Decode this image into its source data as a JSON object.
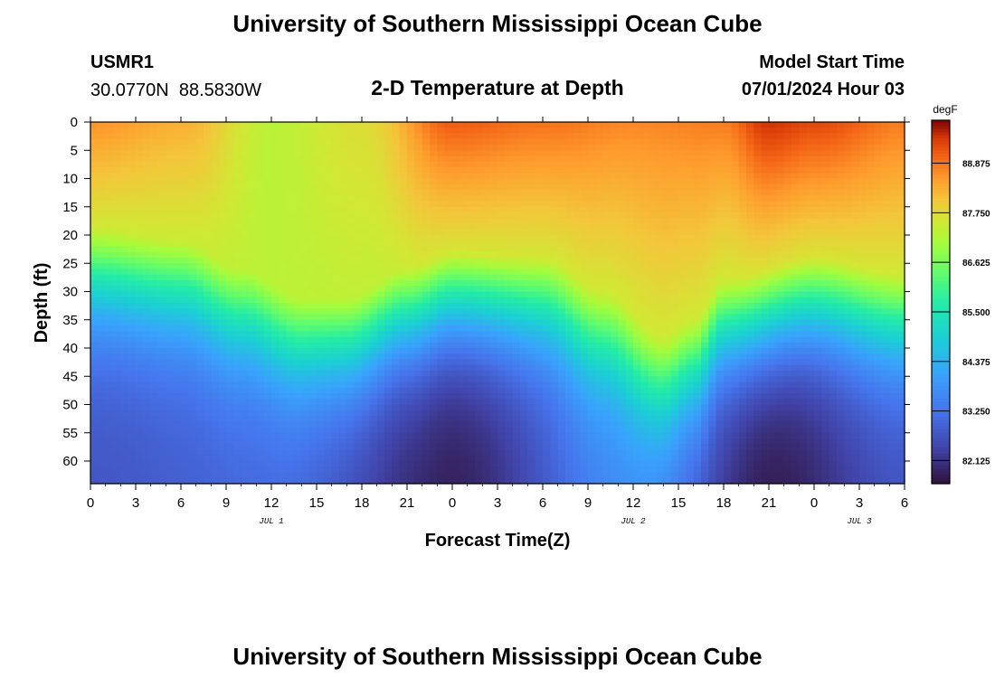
{
  "header": {
    "title": "University of Southern Mississippi Ocean Cube",
    "station_id": "USMR1",
    "coordinates": "30.0770N  88.5830W",
    "plot_title": "2-D Temperature at Depth",
    "model_start_label": "Model Start Time",
    "model_start_value": "07/01/2024 Hour 03"
  },
  "footer": {
    "title": "University of Southern Mississippi Ocean Cube"
  },
  "colorbar": {
    "unit": "degF",
    "ticks": [
      "88.875",
      "87.750",
      "86.625",
      "85.500",
      "84.375",
      "83.250",
      "82.125"
    ]
  },
  "chart_data": {
    "type": "heatmap",
    "title": "2-D Temperature at Depth",
    "xlabel": "Forecast Time(Z)",
    "ylabel": "Depth (ft)",
    "x_tick_labels": [
      "0",
      "3",
      "6",
      "9",
      "12",
      "15",
      "18",
      "21",
      "0",
      "3",
      "6",
      "9",
      "12",
      "15",
      "18",
      "21",
      "0",
      "3",
      "6"
    ],
    "x_range_hours": [
      0,
      54
    ],
    "date_labels": [
      {
        "label": "JUL 1",
        "hour": 12
      },
      {
        "label": "JUL 2",
        "hour": 36
      },
      {
        "label": "JUL 3",
        "hour": 51
      }
    ],
    "y_tick_labels": [
      "0",
      "5",
      "10",
      "15",
      "20",
      "25",
      "30",
      "35",
      "40",
      "45",
      "50",
      "55",
      "60"
    ],
    "ylim_ft": [
      0,
      64
    ],
    "colorbar_range_degF": [
      81.6,
      89.85
    ],
    "surface_temp_degF": [
      {
        "hour": 0,
        "value": 88.6
      },
      {
        "hour": 6,
        "value": 88.3
      },
      {
        "hour": 12,
        "value": 87.3
      },
      {
        "hour": 18,
        "value": 87.7
      },
      {
        "hour": 24,
        "value": 89.1
      },
      {
        "hour": 30,
        "value": 88.9
      },
      {
        "hour": 36,
        "value": 88.7
      },
      {
        "hour": 42,
        "value": 88.8
      },
      {
        "hour": 45,
        "value": 89.5
      },
      {
        "hour": 48,
        "value": 89.3
      },
      {
        "hour": 54,
        "value": 88.8
      }
    ],
    "thermocline_depth_ft": [
      {
        "hour": 0,
        "value": 25
      },
      {
        "hour": 6,
        "value": 27
      },
      {
        "hour": 10,
        "value": 32
      },
      {
        "hour": 14,
        "value": 37
      },
      {
        "hour": 17,
        "value": 37
      },
      {
        "hour": 21,
        "value": 32
      },
      {
        "hour": 24,
        "value": 29
      },
      {
        "hour": 30,
        "value": 30
      },
      {
        "hour": 34,
        "value": 36
      },
      {
        "hour": 38,
        "value": 44
      },
      {
        "hour": 40,
        "value": 41
      },
      {
        "hour": 42,
        "value": 34
      },
      {
        "hour": 48,
        "value": 30
      },
      {
        "hour": 54,
        "value": 33
      }
    ],
    "bottom_temp_degF": [
      {
        "hour": 0,
        "value": 82.7
      },
      {
        "hour": 12,
        "value": 83.0
      },
      {
        "hour": 24,
        "value": 81.8
      },
      {
        "hour": 36,
        "value": 83.6
      },
      {
        "hour": 45,
        "value": 81.7
      },
      {
        "hour": 54,
        "value": 82.6
      }
    ]
  }
}
